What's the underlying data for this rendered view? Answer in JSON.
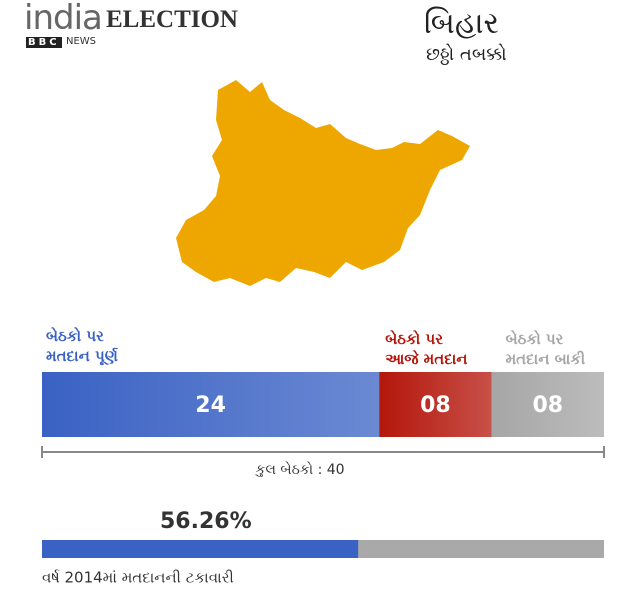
{
  "header": {
    "brand": "india",
    "title": "ELECTION",
    "logo": "BBC",
    "source": "NEWS",
    "state": "બિહાર",
    "phase": "છઠ્ઠો તબક્કો"
  },
  "chart_data": [
    {
      "type": "stacked-bar",
      "xlim": [
        0,
        40
      ],
      "total_label": "કુલ બેઠકો : 40",
      "series": [
        {
          "name": "બેઠકો પર\nમતદાન પૂર્ણ",
          "color": "#3a62c4",
          "values": [
            24
          ],
          "value_labels": [
            "24"
          ]
        },
        {
          "name": "બેઠકો પર\nઆજે મતદાન",
          "color": "#b4160b",
          "values": [
            8
          ],
          "value_labels": [
            "08"
          ]
        },
        {
          "name": "બેઠકો પર\nમતદાન બાકી",
          "color": "#a6a6a6",
          "values": [
            8
          ],
          "value_labels": [
            "08"
          ]
        }
      ]
    },
    {
      "type": "progress",
      "xlim": [
        0,
        100
      ],
      "values": [
        56.26
      ],
      "value_labels": [
        "56.26%"
      ],
      "color": "#3a62c4",
      "track_color": "#a9a9a9",
      "caption": "વર્ષ 2014માં મતદાનની ટકાવારી"
    }
  ]
}
